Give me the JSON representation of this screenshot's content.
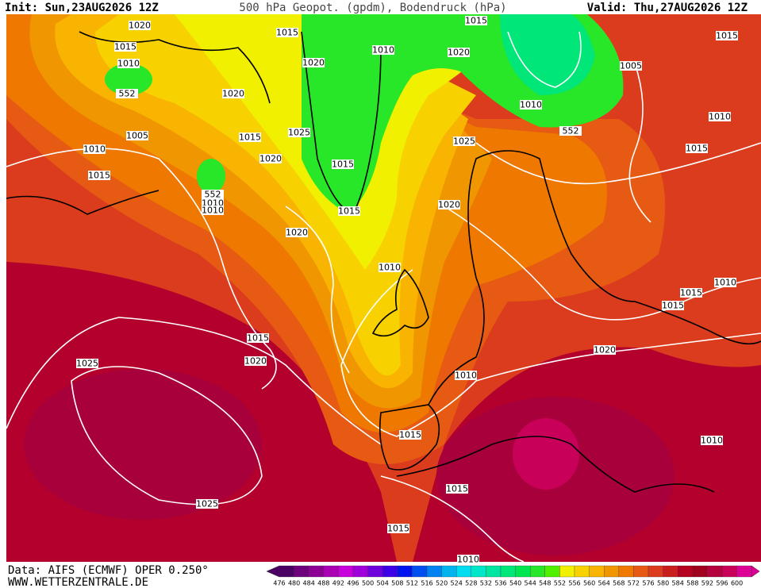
{
  "header": {
    "init": "Init: Sun,23AUG2026 12Z",
    "title": "500 hPa Geopot. (gpdm), Bodendruck (hPa)",
    "valid": "Valid: Thu,27AUG2026 12Z"
  },
  "footer": {
    "source": "Data: AIFS (ECMWF) OPER 0.250°",
    "website": "WWW.WETTERZENTRALE.DE"
  },
  "isobar_labels": [
    "1020",
    "1015",
    "1015",
    "1010",
    "552",
    "1020",
    "1020",
    "1010",
    "1015",
    "1020",
    "1015",
    "1005",
    "1010",
    "552",
    "1010",
    "1005",
    "1015",
    "1025",
    "1025",
    "1010",
    "1015",
    "1020",
    "1015",
    "1015",
    "552",
    "1010",
    "1010",
    "1015",
    "1020",
    "1020",
    "1010",
    "1010",
    "1015",
    "1015",
    "1015",
    "1020",
    "1020",
    "1025",
    "1010",
    "1015",
    "1010",
    "1015",
    "1025",
    "1015",
    "1010"
  ],
  "colorbar": {
    "labels": [
      476,
      480,
      484,
      488,
      492,
      496,
      500,
      504,
      508,
      512,
      516,
      520,
      524,
      528,
      532,
      536,
      540,
      544,
      548,
      552,
      556,
      560,
      564,
      568,
      572,
      576,
      580,
      584,
      588,
      592,
      596,
      600
    ],
    "colors": [
      "#4b0064",
      "#6e007d",
      "#8c0096",
      "#aa00b4",
      "#c800dc",
      "#a000dc",
      "#6e00dc",
      "#3c00e6",
      "#0014f0",
      "#0050f0",
      "#0082f0",
      "#00b4f0",
      "#00dcf0",
      "#00e6c8",
      "#00e6a0",
      "#00e678",
      "#00e650",
      "#28e628",
      "#50f000",
      "#f0f000",
      "#f8d200",
      "#f8b400",
      "#f09600",
      "#ee7800",
      "#e65a14",
      "#dc3c1e",
      "#c81e1e",
      "#b4001e",
      "#a0001e",
      "#b4003c",
      "#c8005a",
      "#dc0096"
    ]
  }
}
